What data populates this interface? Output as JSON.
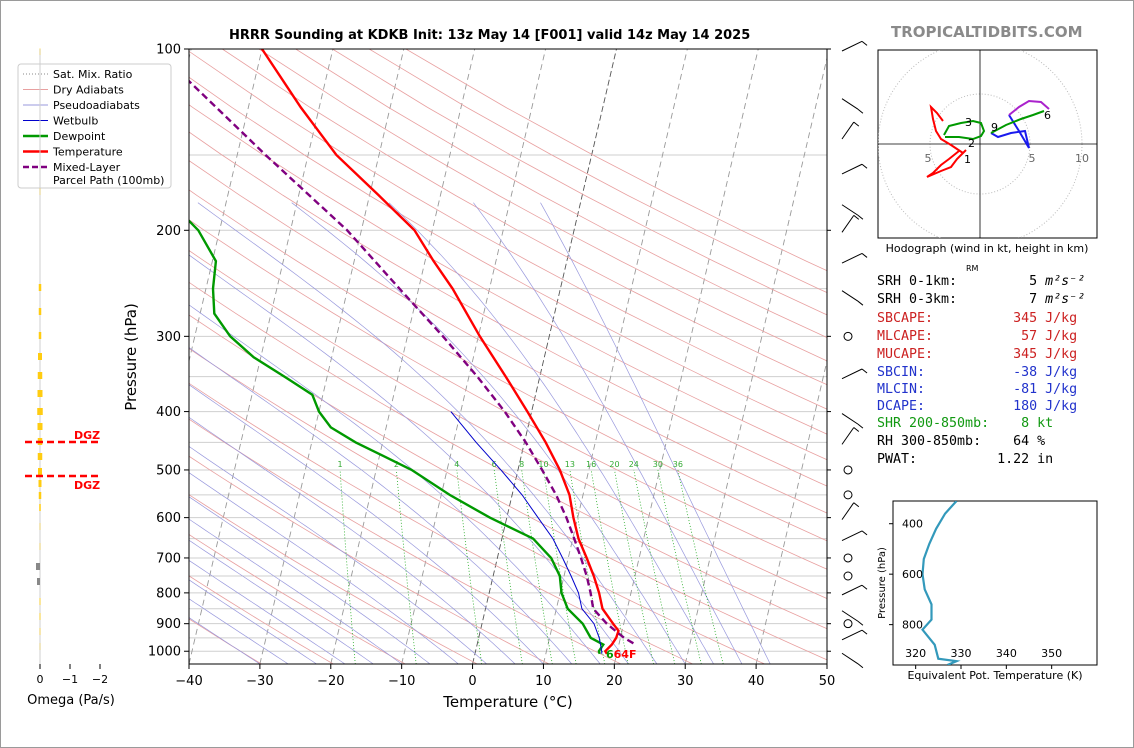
{
  "header": {
    "title": "HRRR Sounding at KDKB Init: 13z May 14 [F001] valid 14z May 14 2025",
    "brand": "TROPICALTIDBITS.COM"
  },
  "chart_data": [
    {
      "type": "line",
      "name": "skew-t",
      "xlabel": "Temperature (°C)",
      "ylabel": "Pressure (hPa)",
      "xlim": [
        -40,
        50
      ],
      "ylim": [
        1050,
        100
      ],
      "y_scale": "log",
      "x_ticks": [
        "−40",
        "−30",
        "−20",
        "−10",
        "0",
        "10",
        "20",
        "30",
        "40",
        "50"
      ],
      "y_ticks": [
        "100",
        "200",
        "300",
        "400",
        "500",
        "600",
        "700",
        "800",
        "900",
        "1000"
      ],
      "legend": {
        "placement": "top-left",
        "entries": [
          "Sat. Mix. Ratio",
          "Dry Adiabats",
          "Pseudoadiabats",
          "Wetbulb",
          "Dewpoint",
          "Temperature",
          "Mixed-Layer\nParcel Path (100mb)"
        ]
      },
      "mixing_ratio_labels": [
        "1",
        "2",
        "4",
        "6",
        "8",
        "10",
        "13",
        "16",
        "20",
        "24",
        "30",
        "36"
      ],
      "surface_label": "64F",
      "series": [
        {
          "name": "Temperature",
          "color": "#ff0000",
          "points": [
            [
              1010,
              18.6
            ],
            [
              1000,
              18.3
            ],
            [
              975,
              19.0
            ],
            [
              950,
              19.4
            ],
            [
              925,
              19.5
            ],
            [
              900,
              18.5
            ],
            [
              850,
              16.5
            ],
            [
              800,
              15.5
            ],
            [
              750,
              14.2
            ],
            [
              700,
              12.6
            ],
            [
              650,
              10.8
            ],
            [
              600,
              9.4
            ],
            [
              550,
              8.1
            ],
            [
              500,
              5.9
            ],
            [
              450,
              3.0
            ],
            [
              400,
              -0.6
            ],
            [
              350,
              -4.8
            ],
            [
              300,
              -9.8
            ],
            [
              250,
              -15.2
            ],
            [
              225,
              -18.8
            ],
            [
              200,
              -22.5
            ],
            [
              175,
              -28.7
            ],
            [
              150,
              -36.0
            ],
            [
              125,
              -42.6
            ],
            [
              100,
              -50.0
            ]
          ]
        },
        {
          "name": "Dewpoint",
          "color": "#009900",
          "points": [
            [
              1010,
              17.6
            ],
            [
              1000,
              17.4
            ],
            [
              975,
              17.8
            ],
            [
              950,
              15.8
            ],
            [
              900,
              14.2
            ],
            [
              850,
              11.6
            ],
            [
              800,
              10.2
            ],
            [
              750,
              9.4
            ],
            [
              700,
              7.6
            ],
            [
              650,
              4.4
            ],
            [
              600,
              -2.4
            ],
            [
              550,
              -8.8
            ],
            [
              500,
              -15.0
            ],
            [
              450,
              -23.8
            ],
            [
              425,
              -27.8
            ],
            [
              400,
              -30.0
            ],
            [
              375,
              -31.5
            ],
            [
              350,
              -36.0
            ],
            [
              325,
              -41.0
            ],
            [
              300,
              -45.0
            ],
            [
              275,
              -48.0
            ],
            [
              250,
              -49.0
            ],
            [
              225,
              -49.5
            ],
            [
              200,
              -53.0
            ],
            [
              175,
              -59.0
            ],
            [
              150,
              -65.5
            ],
            [
              125,
              -70.0
            ],
            [
              100,
              -75.0
            ]
          ]
        },
        {
          "name": "Wetbulb",
          "color": "#0000cc",
          "points": [
            [
              1010,
              17.9
            ],
            [
              1000,
              17.8
            ],
            [
              950,
              17.0
            ],
            [
              900,
              15.8
            ],
            [
              850,
              13.6
            ],
            [
              800,
              12.6
            ],
            [
              750,
              11.0
            ],
            [
              700,
              9.2
            ],
            [
              650,
              7.2
            ],
            [
              600,
              4.4
            ],
            [
              550,
              1.4
            ],
            [
              500,
              -2.4
            ],
            [
              450,
              -6.8
            ],
            [
              400,
              -11.4
            ]
          ]
        },
        {
          "name": "Mixed-Layer Parcel Path (100mb)",
          "color": "#800080",
          "points": [
            [
              970,
              22.0
            ],
            [
              950,
              20.5
            ],
            [
              900,
              17.6
            ],
            [
              850,
              15.2
            ],
            [
              800,
              14.3
            ],
            [
              750,
              13.2
            ],
            [
              700,
              11.8
            ],
            [
              650,
              10.2
            ],
            [
              600,
              8.4
            ],
            [
              550,
              6.2
            ],
            [
              500,
              3.4
            ],
            [
              450,
              0.2
            ],
            [
              400,
              -3.8
            ],
            [
              350,
              -8.8
            ],
            [
              300,
              -15.0
            ],
            [
              250,
              -22.7
            ],
            [
              200,
              -32.0
            ],
            [
              150,
              -46.0
            ],
            [
              100,
              -65.0
            ]
          ]
        }
      ]
    },
    {
      "type": "bar",
      "name": "omega",
      "xlabel": "Omega (Pa/s)",
      "x_ticks": [
        "0",
        "−1",
        "−2"
      ],
      "dgz_labels": [
        "DGZ",
        "DGZ"
      ]
    },
    {
      "type": "line",
      "name": "hodograph",
      "title": "Hodograph (wind in kt, height in km)",
      "x_ticks": [
        "5",
        "5",
        "10"
      ],
      "height_labels": [
        "1",
        "2",
        "3",
        "6",
        "9"
      ],
      "rm_label": "RM"
    },
    {
      "type": "line",
      "name": "theta-e",
      "xlabel": "Equivalent Pot. Temperature (K)",
      "ylabel": "Pressure (hPa)",
      "x_ticks": [
        "320",
        "330",
        "340",
        "350"
      ],
      "y_ticks": [
        "400",
        "600",
        "800"
      ],
      "xlim": [
        315,
        360
      ],
      "ylim": [
        960,
        310
      ],
      "series": [
        {
          "name": "θe",
          "color": "#3399bb",
          "points": [
            [
              960,
              327.0
            ],
            [
              945,
              329.0
            ],
            [
              935,
              325.0
            ],
            [
              880,
              324.2
            ],
            [
              820,
              321.5
            ],
            [
              780,
              323.5
            ],
            [
              720,
              323.5
            ],
            [
              660,
              322.0
            ],
            [
              600,
              321.5
            ],
            [
              540,
              321.8
            ],
            [
              480,
              323.0
            ],
            [
              420,
              324.5
            ],
            [
              360,
              326.5
            ],
            [
              310,
              329.0
            ]
          ]
        }
      ]
    }
  ],
  "stats": {
    "srh01": "SRH 0-1km:         5",
    "srh03": "SRH 0-3km:         7",
    "srh_unit": "m²s⁻²",
    "sbcape": "SBCAPE:          345 J/kg",
    "mlcape": "MLCAPE:           57 J/kg",
    "mucape": "MUCAPE:          345 J/kg",
    "sbcin": "SBCIN:           -38 J/kg",
    "mlcin": "MLCIN:           -81 J/kg",
    "dcape": "DCAPE:           180 J/kg",
    "shr": "SHR 200-850mb:    8 kt",
    "rh": "RH 300-850mb:    64 %",
    "pwat": "PWAT:          1.22 in"
  },
  "colors": {
    "temperature": "#ff0000",
    "dewpoint": "#009900",
    "wetbulb": "#0000cc",
    "parcel": "#800080",
    "cape_text": "#cc2222",
    "cin_text": "#2233cc",
    "shear_text": "#119911",
    "brand": "#8a8a8a",
    "dgz": "#ff0000",
    "omega_bar": "#ffcc11"
  }
}
